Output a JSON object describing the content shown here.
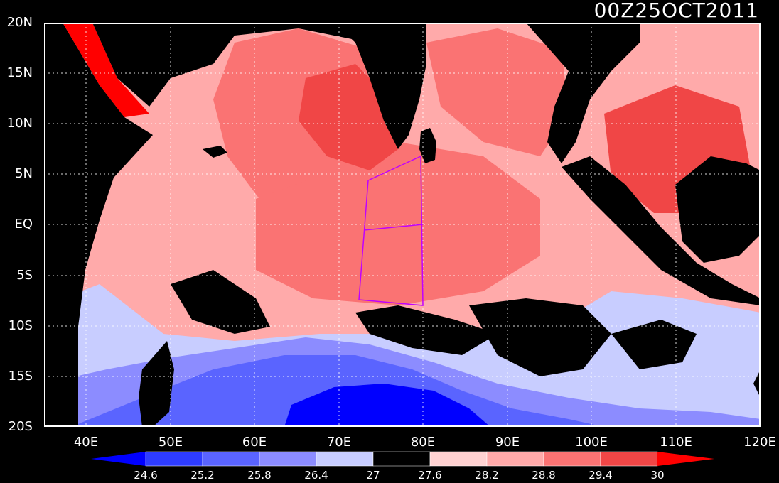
{
  "title": "00Z25OCT2011",
  "map": {
    "lat_labels": [
      "20N",
      "15N",
      "10N",
      "5N",
      "EQ",
      "5S",
      "10S",
      "15S",
      "20S"
    ],
    "lon_labels": [
      "40E",
      "50E",
      "60E",
      "70E",
      "80E",
      "90E",
      "100E",
      "110E",
      "120E"
    ],
    "lon_range": [
      35,
      120
    ],
    "lat_range": [
      -20,
      20
    ],
    "grid": "dotted"
  },
  "colorbar": {
    "labels": [
      "24.6",
      "25.2",
      "25.8",
      "26.4",
      "27",
      "27.6",
      "28.2",
      "28.8",
      "29.4",
      "30"
    ],
    "colors": [
      "#0000ff",
      "#2e3cff",
      "#5a64ff",
      "#8c8cff",
      "#c8cdff",
      "#000000",
      "#ffd2d2",
      "#ffaaaa",
      "#fa7373",
      "#f04646",
      "#ff0000"
    ]
  },
  "colors": {
    "land": "#000000",
    "ocean_warm": "#fa7373",
    "ocean_hot": "#f04646",
    "ocean_cold": "#5a64ff",
    "box_outline": "#c000ff",
    "coast": "#8000c0"
  }
}
